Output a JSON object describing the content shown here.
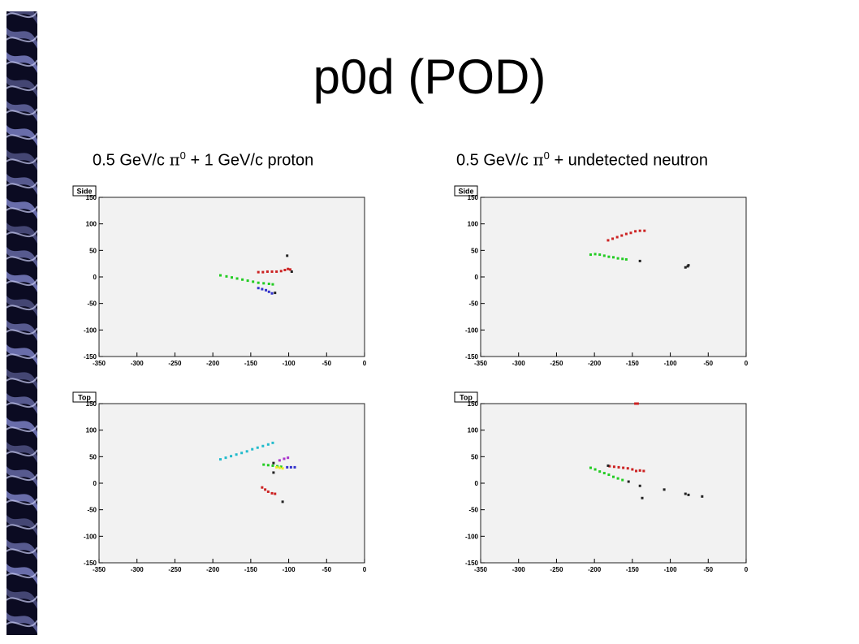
{
  "slide": {
    "title": "p0d (POD)",
    "subtitles": {
      "left_prefix": "0.5 GeV/c ",
      "left_symbol": "π",
      "left_sup": "0",
      "left_suffix": " + 1 GeV/c proton",
      "right_prefix": "0.5 GeV/c ",
      "right_symbol": "π",
      "right_sup": "0",
      "right_suffix": " + undetected neutron"
    }
  },
  "colors": {
    "plot_bg": "#f2f2f2",
    "frame": "#222222",
    "sidebar_dark": "#0b0b22",
    "sidebar_light": "#8a8fd8"
  },
  "chart_data": [
    {
      "type": "scatter",
      "label": "Side",
      "event": "0.5 GeV/c π0 + 1 GeV/c proton",
      "xlim": [
        -350,
        0
      ],
      "ylim": [
        -150,
        150
      ],
      "xticks": [
        -350,
        -300,
        -250,
        -200,
        -150,
        -100,
        -50,
        0
      ],
      "yticks": [
        150,
        100,
        50,
        0,
        -50,
        -100,
        -150
      ],
      "series": [
        {
          "color": "#22cc22",
          "points": [
            [
              -190,
              3
            ],
            [
              -182,
              1
            ],
            [
              -175,
              -1
            ],
            [
              -168,
              -3
            ],
            [
              -161,
              -5
            ],
            [
              -154,
              -7
            ],
            [
              -147,
              -9
            ],
            [
              -140,
              -11
            ],
            [
              -133,
              -12
            ],
            [
              -126,
              -13
            ],
            [
              -121,
              -14
            ]
          ]
        },
        {
          "color": "#cc2222",
          "points": [
            [
              -140,
              9
            ],
            [
              -134,
              9
            ],
            [
              -128,
              10
            ],
            [
              -122,
              10
            ],
            [
              -116,
              10
            ],
            [
              -110,
              11
            ],
            [
              -105,
              13
            ],
            [
              -101,
              15
            ],
            [
              -98,
              14
            ]
          ]
        },
        {
          "color": "#3333cc",
          "points": [
            [
              -140,
              -21
            ],
            [
              -135,
              -23
            ],
            [
              -130,
              -25
            ],
            [
              -126,
              -28
            ],
            [
              -122,
              -31
            ]
          ]
        },
        {
          "color": "#222222",
          "points": [
            [
              -102,
              40
            ],
            [
              -118,
              -30
            ],
            [
              -96,
              10
            ]
          ]
        }
      ]
    },
    {
      "type": "scatter",
      "label": "Side",
      "event": "0.5 GeV/c π0 + undetected neutron",
      "xlim": [
        -350,
        0
      ],
      "ylim": [
        -150,
        150
      ],
      "xticks": [
        -350,
        -300,
        -250,
        -200,
        -150,
        -100,
        -50,
        0
      ],
      "yticks": [
        150,
        100,
        50,
        0,
        -50,
        -100,
        -150
      ],
      "series": [
        {
          "color": "#cc2222",
          "points": [
            [
              -182,
              69
            ],
            [
              -176,
              72
            ],
            [
              -170,
              75
            ],
            [
              -164,
              78
            ],
            [
              -158,
              81
            ],
            [
              -152,
              83
            ],
            [
              -146,
              86
            ],
            [
              -140,
              87
            ],
            [
              -134,
              87
            ]
          ]
        },
        {
          "color": "#22cc22",
          "points": [
            [
              -205,
              42
            ],
            [
              -199,
              43
            ],
            [
              -193,
              42
            ],
            [
              -187,
              40
            ],
            [
              -181,
              38
            ],
            [
              -175,
              37
            ],
            [
              -169,
              35
            ],
            [
              -163,
              34
            ],
            [
              -158,
              33
            ]
          ]
        },
        {
          "color": "#222222",
          "points": [
            [
              -140,
              30
            ],
            [
              -80,
              18
            ],
            [
              -77,
              20
            ],
            [
              -76,
              22
            ]
          ]
        }
      ]
    },
    {
      "type": "scatter",
      "label": "Top",
      "event": "0.5 GeV/c π0 + 1 GeV/c proton",
      "xlim": [
        -350,
        0
      ],
      "ylim": [
        -150,
        150
      ],
      "xticks": [
        -350,
        -300,
        -250,
        -200,
        -150,
        -100,
        -50,
        0
      ],
      "yticks": [
        150,
        100,
        50,
        0,
        -50,
        -100,
        -150
      ],
      "series": [
        {
          "color": "#22bbcc",
          "points": [
            [
              -190,
              45
            ],
            [
              -183,
              48
            ],
            [
              -176,
              51
            ],
            [
              -169,
              54
            ],
            [
              -162,
              57
            ],
            [
              -155,
              60
            ],
            [
              -148,
              64
            ],
            [
              -141,
              67
            ],
            [
              -134,
              70
            ],
            [
              -127,
              73
            ],
            [
              -121,
              76
            ]
          ]
        },
        {
          "color": "#22cc22",
          "points": [
            [
              -133,
              35
            ],
            [
              -127,
              34
            ],
            [
              -121,
              33
            ],
            [
              -115,
              32
            ],
            [
              -110,
              31
            ]
          ]
        },
        {
          "color": "#3333cc",
          "points": [
            [
              -102,
              30
            ],
            [
              -97,
              30
            ],
            [
              -92,
              30
            ]
          ]
        },
        {
          "color": "#eeee22",
          "points": [
            [
              -116,
              30
            ],
            [
              -112,
              29
            ],
            [
              -108,
              28
            ]
          ]
        },
        {
          "color": "#aa33cc",
          "points": [
            [
              -112,
              43
            ],
            [
              -106,
              46
            ],
            [
              -101,
              48
            ]
          ]
        },
        {
          "color": "#cc2222",
          "points": [
            [
              -135,
              -8
            ],
            [
              -131,
              -12
            ],
            [
              -127,
              -16
            ],
            [
              -122,
              -19
            ],
            [
              -118,
              -20
            ]
          ]
        },
        {
          "color": "#222222",
          "points": [
            [
              -120,
              20
            ],
            [
              -108,
              -35
            ],
            [
              -120,
              38
            ]
          ]
        }
      ]
    },
    {
      "type": "scatter",
      "label": "Top",
      "event": "0.5 GeV/c π0 + undetected neutron",
      "xlim": [
        -350,
        0
      ],
      "ylim": [
        -150,
        150
      ],
      "xticks": [
        -350,
        -300,
        -250,
        -200,
        -150,
        -100,
        -50,
        0
      ],
      "yticks": [
        150,
        100,
        50,
        0,
        -50,
        -100,
        -150
      ],
      "series": [
        {
          "color": "#cc2222",
          "points": [
            [
              -180,
              32
            ],
            [
              -174,
              31
            ],
            [
              -168,
              30
            ],
            [
              -162,
              29
            ],
            [
              -156,
              28
            ],
            [
              -150,
              26
            ],
            [
              -145,
              23
            ],
            [
              -140,
              24
            ],
            [
              -135,
              23
            ],
            [
              -146,
              150
            ],
            [
              -143,
              150
            ]
          ]
        },
        {
          "color": "#22cc22",
          "points": [
            [
              -205,
              29
            ],
            [
              -199,
              26
            ],
            [
              -193,
              22
            ],
            [
              -187,
              19
            ],
            [
              -181,
              16
            ],
            [
              -175,
              12
            ],
            [
              -169,
              9
            ],
            [
              -163,
              6
            ]
          ]
        },
        {
          "color": "#222222",
          "points": [
            [
              -182,
              33
            ],
            [
              -155,
              3
            ],
            [
              -140,
              -5
            ],
            [
              -108,
              -12
            ],
            [
              -80,
              -20
            ],
            [
              -76,
              -22
            ],
            [
              -58,
              -25
            ],
            [
              -137,
              -28
            ]
          ]
        }
      ]
    }
  ]
}
